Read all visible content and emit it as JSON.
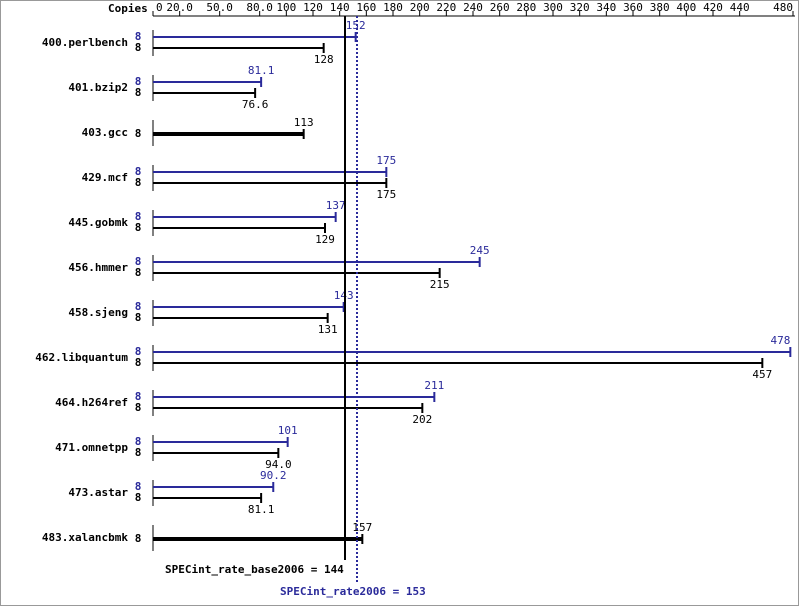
{
  "chart_data": {
    "type": "hbar",
    "axis_label": "Copies",
    "categories": [
      "400.perlbench",
      "401.bzip2",
      "403.gcc",
      "429.mcf",
      "445.gobmk",
      "456.hmmer",
      "458.sjeng",
      "462.libquantum",
      "464.h264ref",
      "471.omnetpp",
      "473.astar",
      "483.xalancbmk"
    ],
    "series": [
      {
        "color": "#2a2a9a",
        "copies": [
          8,
          8,
          null,
          8,
          8,
          8,
          8,
          8,
          8,
          8,
          8,
          null
        ],
        "values": [
          152,
          81.1,
          null,
          175,
          137,
          245,
          143,
          478,
          211,
          101,
          90.2,
          null
        ]
      },
      {
        "color": "#000000",
        "copies": [
          8,
          8,
          8,
          8,
          8,
          8,
          8,
          8,
          8,
          8,
          8,
          8
        ],
        "values": [
          128,
          76.6,
          113,
          175,
          129,
          215,
          131,
          457,
          202,
          94,
          81.1,
          157
        ],
        "value_labels": [
          "128",
          "76.6",
          "113",
          "175",
          "129",
          "215",
          "131",
          "457",
          "202",
          "94.0",
          "81.1",
          "157"
        ]
      }
    ],
    "xlim": [
      0,
      480
    ],
    "xticks": [
      0,
      {
        "value": 20,
        "label": "20.0"
      },
      {
        "value": 50,
        "label": "50.0"
      },
      {
        "value": 80,
        "label": "80.0"
      },
      100,
      120,
      140,
      160,
      180,
      200,
      220,
      240,
      260,
      280,
      300,
      320,
      340,
      360,
      380,
      400,
      420,
      440,
      480
    ],
    "reference_lines": [
      {
        "label": "SPECint_rate_base2006 = 144",
        "value": 144,
        "color": "#000000",
        "dashed": false
      },
      {
        "label": "SPECint_rate2006 = 153",
        "value": 153,
        "color": "#2a2a9a",
        "dashed": true
      }
    ]
  }
}
